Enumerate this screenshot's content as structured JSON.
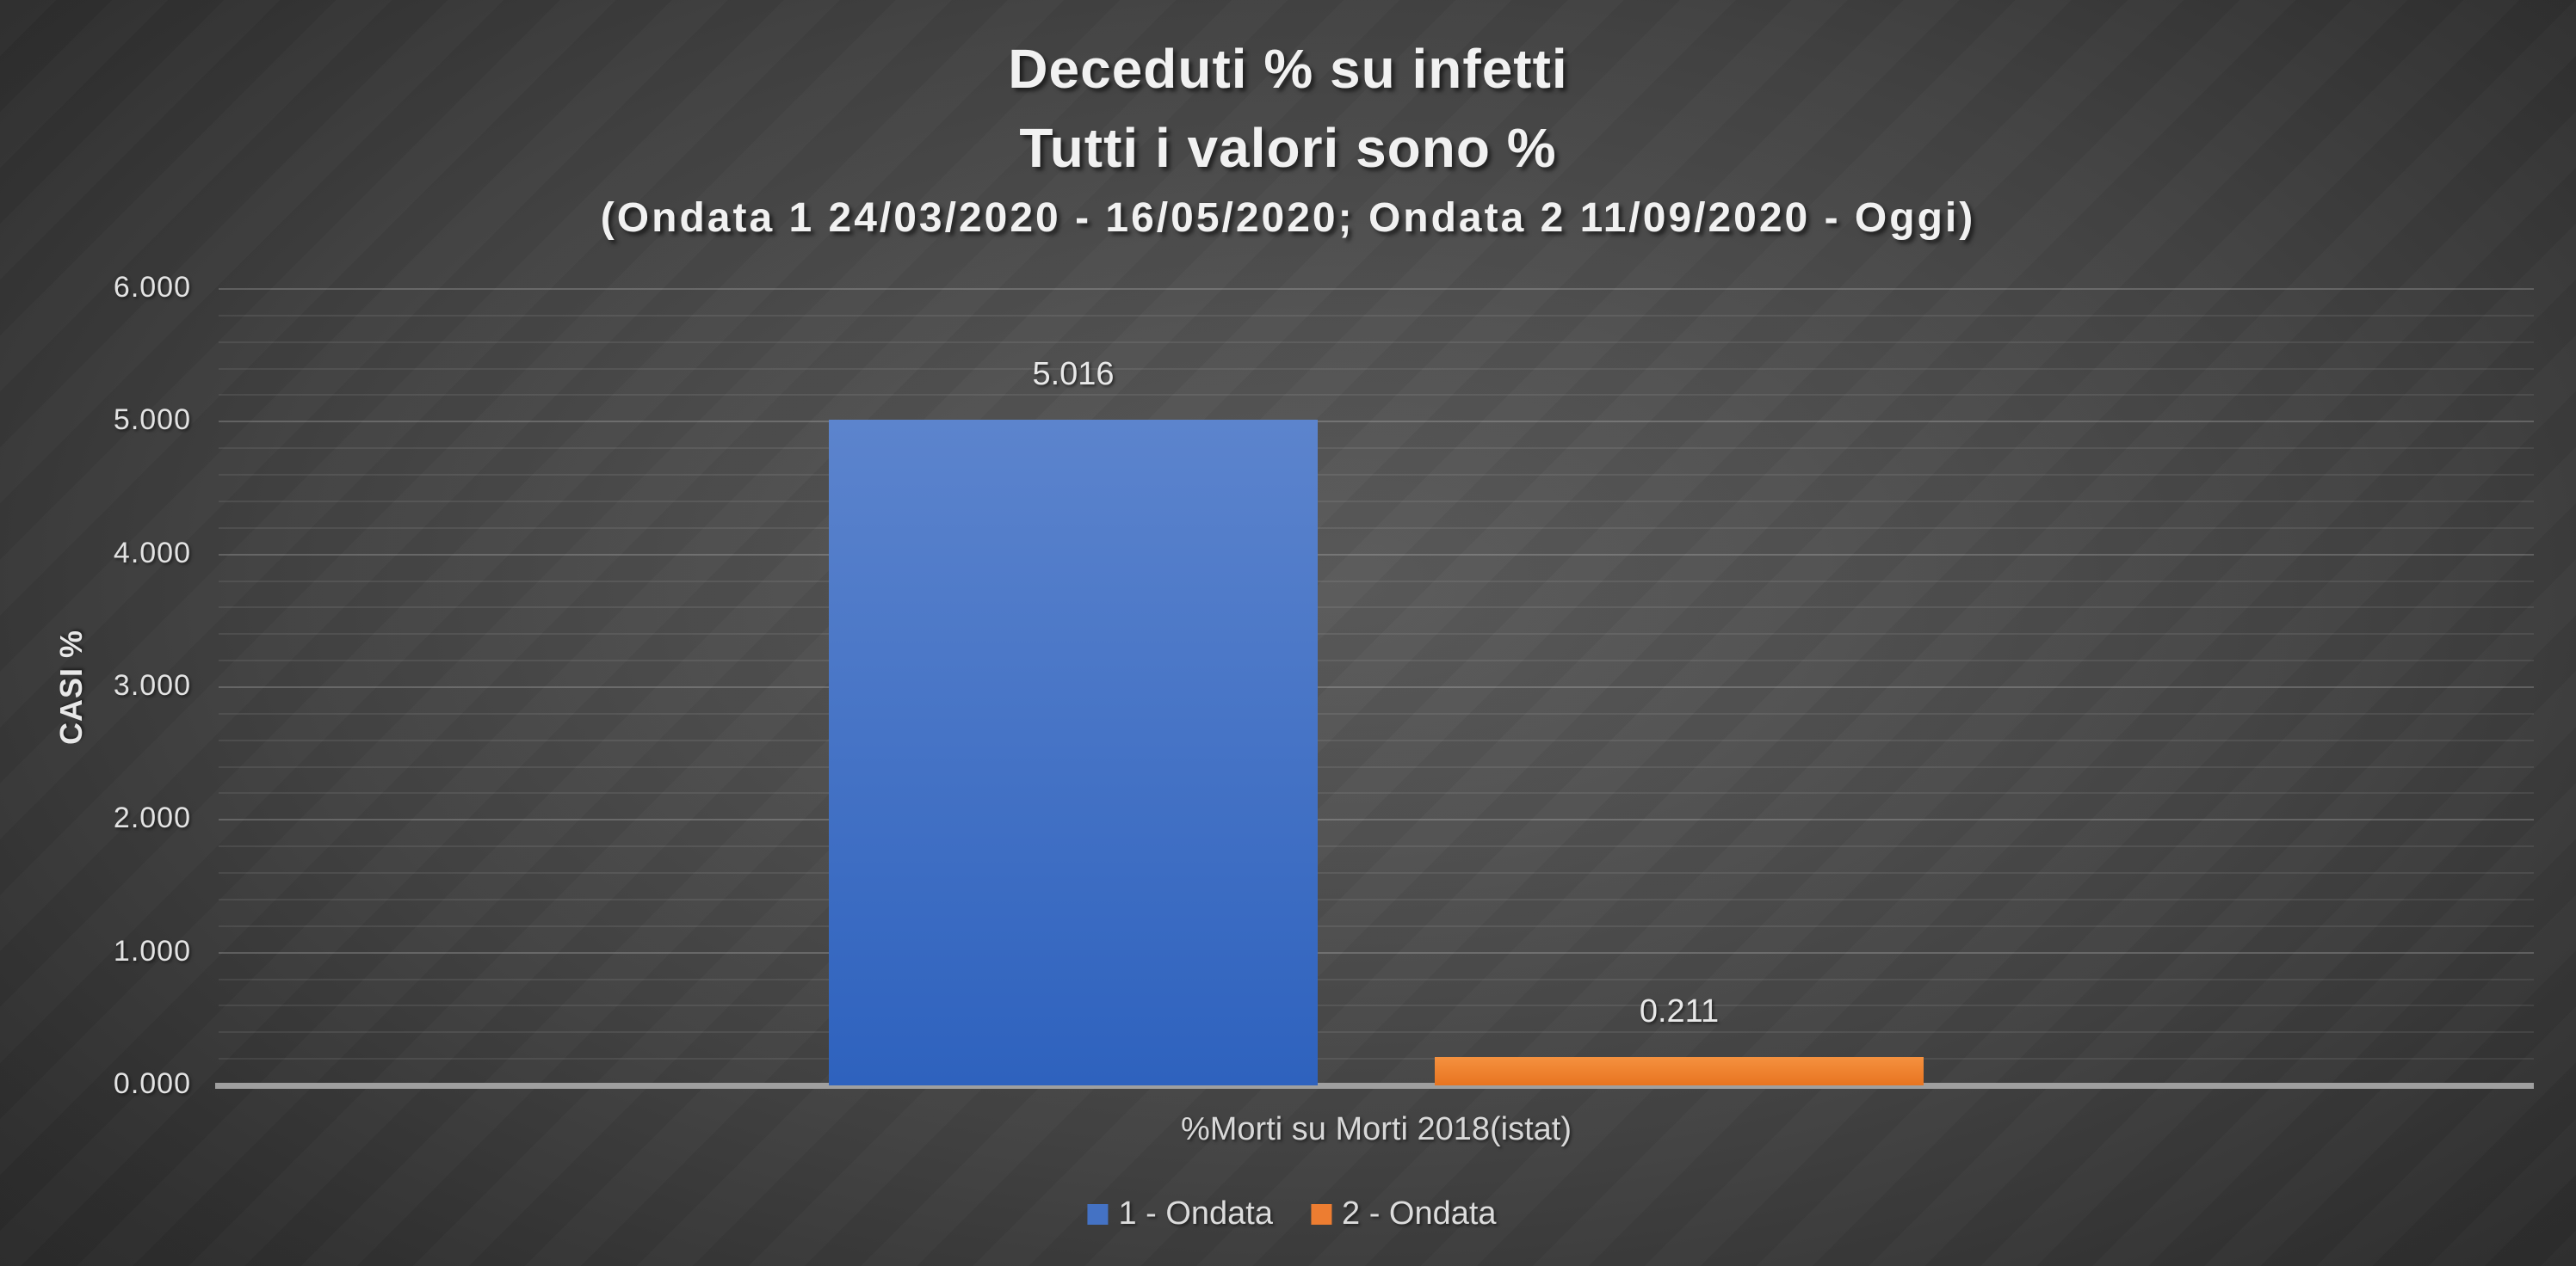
{
  "title": {
    "line1": "Deceduti % su infetti",
    "line2": "Tutti i valori sono %",
    "line3": "(Ondata 1 24/03/2020 - 16/05/2020; Ondata 2 11/09/2020 - Oggi)"
  },
  "axes": {
    "y_title": "CASI %",
    "x_category": "%Morti su Morti 2018(istat)"
  },
  "colors": {
    "background_center": "#5a5a5a",
    "background_edge": "#262626",
    "axis_line": "#9f9f9f",
    "text": "#E8E8E8",
    "series1": "#4472C4",
    "series2": "#ED7D31"
  },
  "chart_data": {
    "type": "bar",
    "title": "Deceduti % su infetti",
    "subtitle": "Tutti i valori sono %",
    "subtitle2": "(Ondata 1 24/03/2020 - 16/05/2020; Ondata 2 11/09/2020 - Oggi)",
    "categories": [
      "%Morti su Morti 2018(istat)"
    ],
    "series": [
      {
        "name": "1 - Ondata",
        "values": [
          5.016
        ],
        "data_label": "5.016",
        "color": "#4472C4",
        "gradient_top": "#5C84CD",
        "gradient_bottom": "#2E62BE"
      },
      {
        "name": "2 - Ondata",
        "values": [
          0.211
        ],
        "data_label": "0.211",
        "color": "#ED7D31",
        "gradient_top": "#F5913F",
        "gradient_bottom": "#E87420"
      }
    ],
    "xlabel": "",
    "ylabel": "CASI %",
    "ylim": [
      0,
      6
    ],
    "ytick_step": 1,
    "minor_gridline_step": 0.2,
    "yticks": [
      "0.000",
      "1.000",
      "2.000",
      "3.000",
      "4.000",
      "5.000",
      "6.000"
    ],
    "grid": true,
    "legend_position": "bottom"
  }
}
